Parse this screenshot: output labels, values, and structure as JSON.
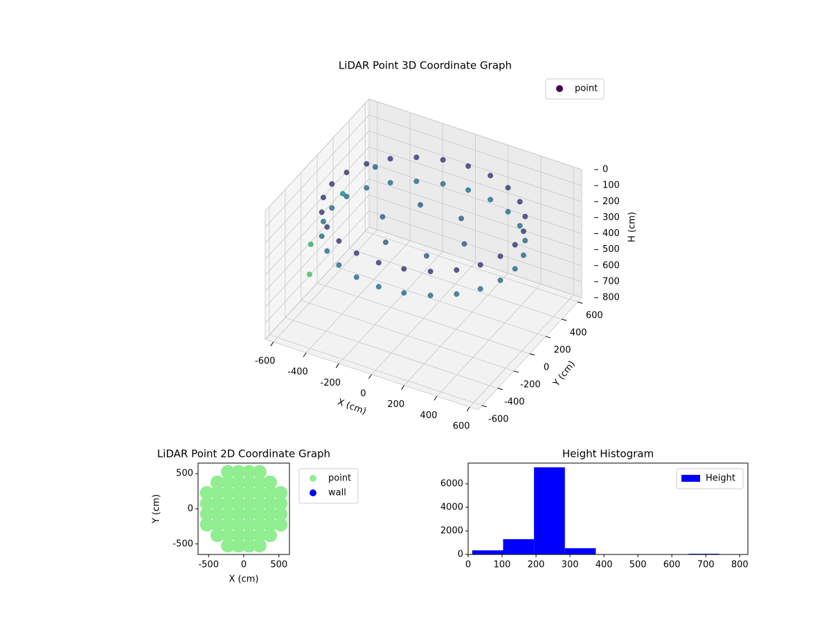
{
  "chart_data": [
    {
      "type": "scatter3d",
      "title": "LiDAR Point 3D Coordinate Graph",
      "xlabel": "X (cm)",
      "ylabel": "Y (cm)",
      "zlabel": "H (cm)",
      "xlim": [
        -650,
        650
      ],
      "ylim": [
        -650,
        650
      ],
      "zlim": [
        0,
        800
      ],
      "z_inverted": true,
      "xticks": [
        -600,
        -400,
        -200,
        0,
        200,
        400,
        600
      ],
      "yticks": [
        -600,
        -400,
        -200,
        0,
        200,
        400,
        600
      ],
      "zticks": [
        0,
        100,
        200,
        300,
        400,
        500,
        600,
        700,
        800
      ],
      "cmap": "viridis",
      "grid": true,
      "legend": "upper right",
      "series": [
        {
          "name": "point",
          "color": "#440154",
          "x": [
            560,
            541,
            485,
            396,
            280,
            145,
            0,
            -145,
            -280,
            -396,
            -485,
            -541,
            -560,
            -541,
            -485,
            -396,
            -280,
            -145,
            0,
            145,
            280,
            396,
            485,
            541,
            560,
            541,
            485,
            396,
            280,
            145,
            0,
            -145,
            -280,
            -396,
            -485,
            -541,
            -560,
            -541,
            -485,
            -396,
            -280,
            -145,
            0,
            145,
            280,
            396,
            485,
            541,
            250,
            125,
            -125,
            -250,
            -125,
            125,
            -640,
            -640,
            -500,
            -550
          ],
          "y": [
            0,
            145,
            280,
            396,
            485,
            541,
            560,
            541,
            485,
            396,
            280,
            145,
            0,
            -145,
            -280,
            -396,
            -485,
            -541,
            -560,
            -541,
            -485,
            -396,
            -280,
            -145,
            0,
            145,
            280,
            396,
            485,
            541,
            560,
            541,
            485,
            396,
            280,
            145,
            0,
            -145,
            -280,
            -396,
            -485,
            -541,
            -560,
            -541,
            -485,
            -396,
            -280,
            -145,
            0,
            217,
            217,
            0,
            -217,
            -217,
            300,
            -100,
            420,
            -300
          ],
          "z": [
            150,
            150,
            150,
            150,
            150,
            150,
            150,
            150,
            150,
            150,
            150,
            150,
            150,
            150,
            150,
            150,
            150,
            150,
            150,
            150,
            150,
            150,
            150,
            150,
            300,
            300,
            300,
            300,
            300,
            300,
            300,
            300,
            300,
            300,
            300,
            300,
            300,
            300,
            300,
            300,
            300,
            300,
            300,
            300,
            300,
            300,
            300,
            300,
            250,
            250,
            250,
            250,
            250,
            250,
            400,
            500,
            250,
            550
          ]
        }
      ]
    },
    {
      "type": "scatter",
      "title": "LiDAR Point 2D Coordinate Graph",
      "xlabel": "X (cm)",
      "ylabel": "Y (cm)",
      "xlim": [
        -650,
        650
      ],
      "ylim": [
        -650,
        650
      ],
      "xticks": [
        -500,
        0,
        500
      ],
      "yticks": [
        -500,
        0,
        500
      ],
      "legend": "outside right",
      "series": [
        {
          "name": "point",
          "color": "#90ee90",
          "x": [
            75,
            75,
            75,
            75,
            225,
            225,
            225,
            225,
            375,
            375,
            375,
            525,
            525,
            -75,
            -75,
            -75,
            -75,
            -225,
            -225,
            -225,
            -225,
            -375,
            -375,
            -375,
            -525,
            -525,
            -75,
            -75,
            -75,
            -75,
            -225,
            -225,
            -225,
            -225,
            -375,
            -375,
            -375,
            -525,
            -525,
            75,
            75,
            75,
            75,
            225,
            225,
            225,
            225,
            375,
            375,
            375,
            525,
            525
          ],
          "y": [
            75,
            225,
            375,
            525,
            75,
            225,
            375,
            525,
            75,
            225,
            375,
            75,
            225,
            75,
            225,
            375,
            525,
            75,
            225,
            375,
            525,
            75,
            225,
            375,
            75,
            225,
            -75,
            -225,
            -375,
            -525,
            -75,
            -225,
            -375,
            -525,
            -75,
            -225,
            -375,
            -75,
            -225,
            -75,
            -225,
            -375,
            -525,
            -75,
            -225,
            -375,
            -525,
            -75,
            -225,
            -375,
            -75,
            -225
          ]
        },
        {
          "name": "wall",
          "color": "#0000ff",
          "x": [],
          "y": []
        }
      ]
    },
    {
      "type": "histogram",
      "title": "Height Histogram",
      "xlim": [
        0,
        824
      ],
      "ylim": [
        0,
        7760
      ],
      "xticks": [
        0,
        100,
        200,
        300,
        400,
        500,
        600,
        700,
        800
      ],
      "yticks": [
        0,
        2000,
        4000,
        6000
      ],
      "legend": "upper right",
      "series": [
        {
          "name": "Height",
          "color": "#0000ff",
          "bins": [
            12,
            103,
            194,
            285,
            376,
            467,
            558,
            649,
            740
          ],
          "counts": [
            350,
            1300,
            7400,
            530,
            10,
            5,
            5,
            60
          ]
        }
      ]
    }
  ]
}
